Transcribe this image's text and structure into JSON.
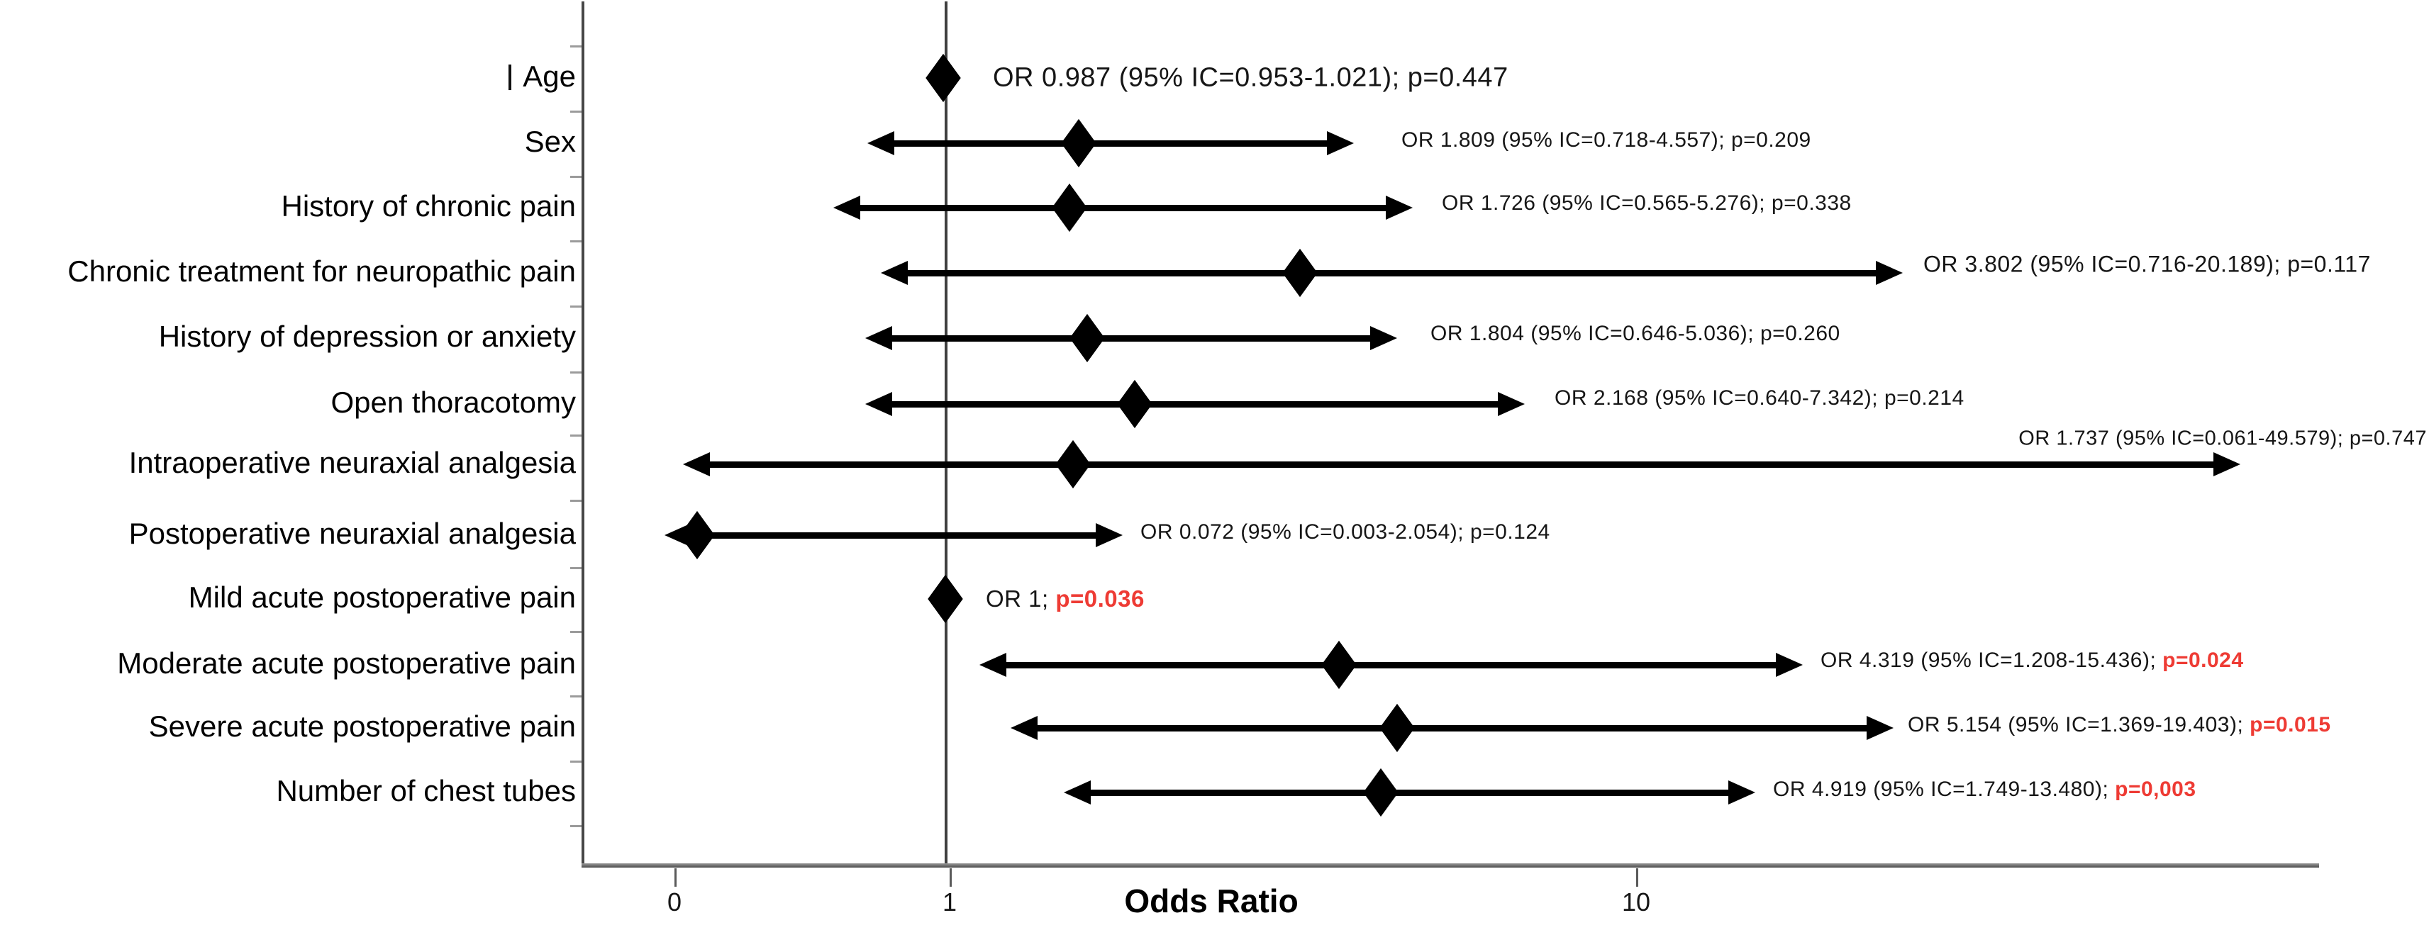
{
  "accent_colors": {
    "significant_p": "#ee3b34",
    "ink": "#161616"
  },
  "chart_data": {
    "type": "scatter",
    "subtype": "forest_plot",
    "xlabel": "Odds Ratio",
    "x_ticks": [
      {
        "label": "0",
        "x": 951
      },
      {
        "label": "1",
        "x": 1339
      },
      {
        "label": "10",
        "x": 2307
      }
    ],
    "x_tick_label_y": 1252,
    "xlabel_pos": {
      "x": 1708,
      "y": 1244
    },
    "axes_layout": {
      "y_axis_x": 820,
      "y_axis_top": 2,
      "y_axis_bottom": 1221,
      "ref_line_x": 1332,
      "x_axis_y": 1218,
      "x_axis_x1": 820,
      "x_axis_x2": 3270,
      "label_right_edge": 812,
      "category_boundary_ticks_y": [
        64,
        156,
        248,
        339,
        431,
        524,
        613,
        705,
        800,
        890,
        981,
        1073,
        1164
      ]
    },
    "rows": [
      {
        "label": "Age",
        "label_bar_prefix": true,
        "or": 0.987,
        "ci_low": 0.953,
        "ci_high": 1.021,
        "p_value": 0.447,
        "p_red": false,
        "annotation": "OR 0.987 (95% IC=0.953-1.021); ",
        "p_label": "p=0.447",
        "layout": {
          "y": 110,
          "diamond_x": 1330,
          "lo_x": null,
          "hi_x": null,
          "ann_x": 1400,
          "ann_align": "left",
          "ann_dy": 0,
          "ann_size": 38
        }
      },
      {
        "label": "Sex",
        "label_bar_prefix": false,
        "or": 1.809,
        "ci_low": 0.718,
        "ci_high": 4.557,
        "p_value": 0.209,
        "p_red": false,
        "annotation": "OR 1.809 (95% IC=0.718-4.557); ",
        "p_label": "p=0.209",
        "layout": {
          "y": 202,
          "diamond_x": 1521,
          "lo_x": 1223,
          "hi_x": 1909,
          "ann_x": 1976,
          "ann_align": "left",
          "ann_dy": -4,
          "ann_size": 30
        }
      },
      {
        "label": "History of chronic pain",
        "label_bar_prefix": false,
        "or": 1.726,
        "ci_low": 0.565,
        "ci_high": 5.276,
        "p_value": 0.338,
        "p_red": false,
        "annotation": "OR 1.726 (95% IC=0.565-5.276); ",
        "p_label": "p=0.338",
        "layout": {
          "y": 293,
          "diamond_x": 1508,
          "lo_x": 1175,
          "hi_x": 1992,
          "ann_x": 2033,
          "ann_align": "left",
          "ann_dy": -6,
          "ann_size": 30
        }
      },
      {
        "label": "Chronic treatment for neuropathic pain",
        "label_bar_prefix": false,
        "or": 3.802,
        "ci_low": 0.716,
        "ci_high": 20.189,
        "p_value": 0.117,
        "p_red": false,
        "annotation": "OR 3.802 (95% IC=0.716-20.189); ",
        "p_label": "p=0.117",
        "layout": {
          "y": 385,
          "diamond_x": 1833,
          "lo_x": 1242,
          "hi_x": 2683,
          "ann_x": 2712,
          "ann_align": "left",
          "ann_dy": -12,
          "ann_size": 32
        }
      },
      {
        "label": "History of depression or anxiety",
        "label_bar_prefix": false,
        "or": 1.804,
        "ci_low": 0.646,
        "ci_high": 5.036,
        "p_value": 0.26,
        "p_red": false,
        "annotation": "OR 1.804 (95% IC=0.646-5.036); ",
        "p_label": "p=0.260",
        "layout": {
          "y": 477,
          "diamond_x": 1533,
          "lo_x": 1220,
          "hi_x": 1970,
          "ann_x": 2017,
          "ann_align": "left",
          "ann_dy": -6,
          "ann_size": 30
        }
      },
      {
        "label": "Open thoracotomy",
        "label_bar_prefix": false,
        "or": 2.168,
        "ci_low": 0.64,
        "ci_high": 7.342,
        "p_value": 0.214,
        "p_red": false,
        "annotation": "OR 2.168 (95% IC=0.640-7.342); ",
        "p_label": "p=0.214",
        "layout": {
          "y": 570,
          "diamond_x": 1600,
          "lo_x": 1220,
          "hi_x": 2150,
          "ann_x": 2192,
          "ann_align": "left",
          "ann_dy": -8,
          "ann_size": 30
        }
      },
      {
        "label": "Intraoperative neuraxial analgesia",
        "label_bar_prefix": false,
        "or": 1.737,
        "ci_low": 0.061,
        "ci_high": 49.579,
        "p_value": 0.747,
        "p_red": false,
        "annotation": "OR 1.737 (95% IC=0.061-49.579); ",
        "p_label": "p=0.747",
        "layout": {
          "y": 655,
          "diamond_x": 1513,
          "lo_x": 963,
          "hi_x": 3159,
          "ann_x": 3422,
          "ann_align": "right",
          "ann_dy": -36,
          "ann_size": 29
        }
      },
      {
        "label": "Postoperative neuraxial analgesia",
        "label_bar_prefix": false,
        "or": 0.072,
        "ci_low": 0.003,
        "ci_high": 2.054,
        "p_value": 0.124,
        "p_red": false,
        "annotation": "OR 0.072 (95% IC=0.003-2.054); ",
        "p_label": "p=0.124",
        "layout": {
          "y": 755,
          "diamond_x": 983,
          "lo_x": 937,
          "hi_x": 1583,
          "ann_x": 1608,
          "ann_align": "left",
          "ann_dy": -4,
          "ann_size": 30
        }
      },
      {
        "label": "Mild acute postoperative pain",
        "label_bar_prefix": false,
        "or": 1,
        "ci_low": null,
        "ci_high": null,
        "p_value": 0.036,
        "p_red": true,
        "annotation": "OR 1; ",
        "p_label": "p=0.036",
        "layout": {
          "y": 845,
          "diamond_x": 1333,
          "lo_x": null,
          "hi_x": null,
          "ann_x": 1390,
          "ann_align": "left",
          "ann_dy": 0,
          "ann_size": 33
        }
      },
      {
        "label": "Moderate acute postoperative pain",
        "label_bar_prefix": false,
        "or": 4.319,
        "ci_low": 1.208,
        "ci_high": 15.436,
        "p_value": 0.024,
        "p_red": true,
        "annotation": "OR 4.319 (95% IC=1.208-15.436); ",
        "p_label": "p=0.024",
        "layout": {
          "y": 938,
          "diamond_x": 1888,
          "lo_x": 1381,
          "hi_x": 2542,
          "ann_x": 2567,
          "ann_align": "left",
          "ann_dy": -6,
          "ann_size": 30
        }
      },
      {
        "label": "Severe acute postoperative pain",
        "label_bar_prefix": false,
        "or": 5.154,
        "ci_low": 1.369,
        "ci_high": 19.403,
        "p_value": 0.015,
        "p_red": true,
        "annotation": "OR 5.154 (95% IC=1.369-19.403); ",
        "p_label": "p=0.015",
        "layout": {
          "y": 1027,
          "diamond_x": 1970,
          "lo_x": 1425,
          "hi_x": 2670,
          "ann_x": 2690,
          "ann_align": "left",
          "ann_dy": -4,
          "ann_size": 30
        }
      },
      {
        "label": "Number of chest tubes",
        "label_bar_prefix": false,
        "or": 4.919,
        "ci_low": 1.749,
        "ci_high": 13.48,
        "p_value": 0.003,
        "p_red": true,
        "annotation": "OR 4.919 (95% IC=1.749-13.480); ",
        "p_label": "p=0,003",
        "layout": {
          "y": 1118,
          "diamond_x": 1947,
          "lo_x": 1500,
          "hi_x": 2475,
          "ann_x": 2500,
          "ann_align": "left",
          "ann_dy": -4,
          "ann_size": 30
        }
      }
    ]
  }
}
